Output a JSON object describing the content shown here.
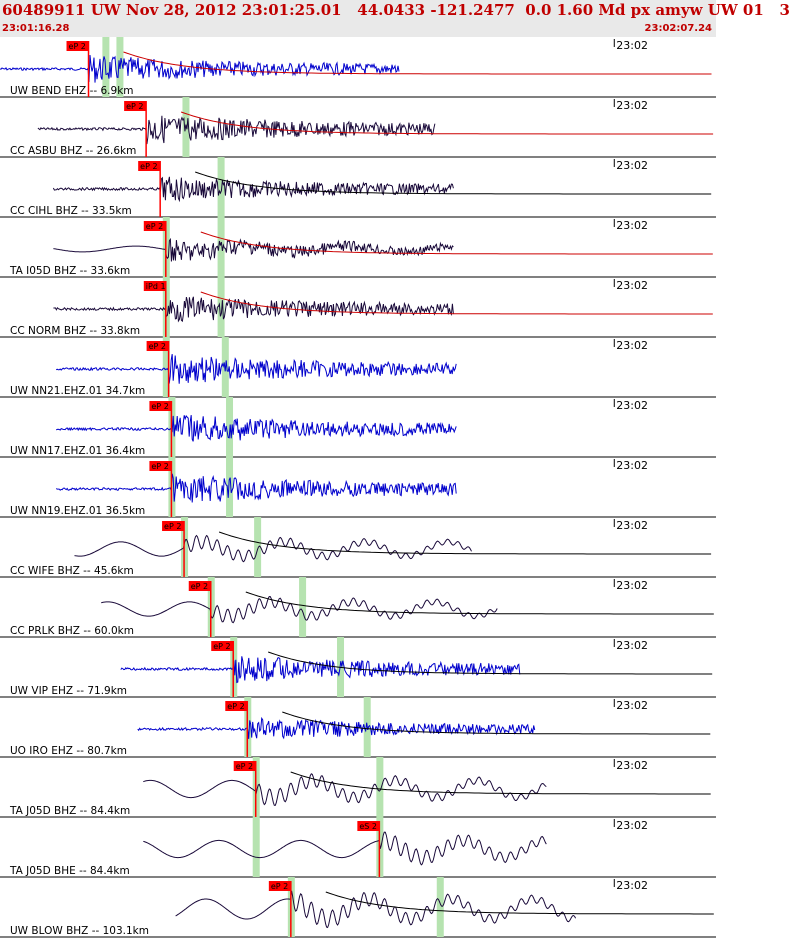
{
  "header": {
    "title": "60489911 UW Nov 28, 2012 23:01:25.01   44.0433 -121.2477  0.0 1.60 Md px amyw UW 01   3",
    "time_start": "23:01:16.28",
    "time_end": "23:02:07.24"
  },
  "colors": {
    "header_bg": "#e9e9e9",
    "header_text": "#c00000",
    "trace_blue": "#0000cc",
    "trace_dark": "#1a0a3a",
    "pick_flag": "#ff0000",
    "window_green": "#b6e3b0",
    "coda_red": "#cc0000"
  },
  "chart_data": {
    "type": "line",
    "xlabel": "",
    "ylabel": "",
    "minute_tick_label": "23:02",
    "traces": [
      {
        "label": "UW BEND EHZ -- 6.9km",
        "pick_label": "eP 2",
        "pick_s": 6.3,
        "window1_s": 7.5,
        "window2_s": 8.5,
        "start_s": 0,
        "end_s": 28.4,
        "color": "blue",
        "kind": "hf",
        "amp": 0.55,
        "coda": "red"
      },
      {
        "label": "CC ASBU BHZ -- 26.6km",
        "pick_label": "eP 2",
        "pick_s": 10.4,
        "window1_s": 0,
        "window2_s": 13.2,
        "start_s": 2.7,
        "end_s": 31.0,
        "color": "dark",
        "kind": "hf",
        "amp": 0.6,
        "coda": "red"
      },
      {
        "label": "CC CIHL BHZ -- 33.5km",
        "pick_label": "eP 2",
        "pick_s": 11.4,
        "window1_s": 0,
        "window2_s": 15.7,
        "start_s": 3.8,
        "end_s": 32.3,
        "color": "dark",
        "kind": "hf",
        "amp": 0.5,
        "coda": "black"
      },
      {
        "label": "TA I05D BHZ -- 33.6km",
        "pick_label": "eP 2",
        "pick_s": 11.8,
        "window1_s": 11.8,
        "window2_s": 15.7,
        "start_s": 3.8,
        "end_s": 32.3,
        "color": "dark",
        "kind": "mix",
        "amp": 0.45,
        "coda": "red"
      },
      {
        "label": "CC NORM BHZ -- 33.8km",
        "pick_label": "iPd 1",
        "pick_s": 11.8,
        "window1_s": 11.8,
        "window2_s": 15.7,
        "start_s": 3.8,
        "end_s": 32.3,
        "color": "dark",
        "kind": "hf",
        "amp": 0.55,
        "coda": "red"
      },
      {
        "label": "UW NN21.EHZ.01 34.7km",
        "pick_label": "eP 2",
        "pick_s": 12.0,
        "window1_s": 11.8,
        "window2_s": 16.0,
        "start_s": 4.0,
        "end_s": 32.5,
        "color": "blue",
        "kind": "hf",
        "amp": 0.6,
        "coda": "none"
      },
      {
        "label": "UW NN17.EHZ.01 36.4km",
        "pick_label": "eP 2",
        "pick_s": 12.2,
        "window1_s": 12.2,
        "window2_s": 16.3,
        "start_s": 4.0,
        "end_s": 32.5,
        "color": "blue",
        "kind": "hf",
        "amp": 0.6,
        "coda": "none"
      },
      {
        "label": "UW NN19.EHZ.01 36.5km",
        "pick_label": "eP 2",
        "pick_s": 12.2,
        "window1_s": 12.2,
        "window2_s": 16.3,
        "start_s": 4.0,
        "end_s": 32.5,
        "color": "blue",
        "kind": "hf",
        "amp": 0.6,
        "coda": "none"
      },
      {
        "label": "CC WIFE BHZ -- 45.6km",
        "pick_label": "eP 2",
        "pick_s": 13.1,
        "window1_s": 13.1,
        "window2_s": 18.3,
        "start_s": 5.3,
        "end_s": 33.6,
        "color": "dark",
        "kind": "lf",
        "amp": 0.5,
        "coda": "black"
      },
      {
        "label": "CC PRLK BHZ -- 60.0km",
        "pick_label": "eP 2",
        "pick_s": 15.0,
        "window1_s": 15.0,
        "window2_s": 21.5,
        "start_s": 7.2,
        "end_s": 35.4,
        "color": "dark",
        "kind": "lf",
        "amp": 0.5,
        "coda": "black"
      },
      {
        "label": "UW VIP EHZ -- 71.9km",
        "pick_label": "eP 2",
        "pick_s": 16.6,
        "window1_s": 16.6,
        "window2_s": 24.2,
        "start_s": 8.6,
        "end_s": 37.0,
        "color": "blue",
        "kind": "hf",
        "amp": 0.55,
        "coda": "black"
      },
      {
        "label": "UO IRO EHZ -- 80.7km",
        "pick_label": "eP 2",
        "pick_s": 17.6,
        "window1_s": 17.6,
        "window2_s": 26.1,
        "start_s": 9.8,
        "end_s": 38.1,
        "color": "blue",
        "kind": "hf",
        "amp": 0.45,
        "coda": "black"
      },
      {
        "label": "TA J05D BHZ -- 84.4km",
        "pick_label": "eP 2",
        "pick_s": 18.2,
        "window1_s": 18.2,
        "window2_s": 27.0,
        "start_s": 10.2,
        "end_s": 38.9,
        "color": "dark",
        "kind": "lf",
        "amp": 0.6,
        "coda": "black"
      },
      {
        "label": "TA J05D BHE -- 84.4km",
        "pick_label": "eS 2",
        "pick_s": 27.0,
        "window1_s": 18.2,
        "window2_s": 27.0,
        "start_s": 10.2,
        "end_s": 38.9,
        "color": "dark",
        "kind": "lf",
        "amp": 0.6,
        "coda": "none"
      },
      {
        "label": "UW BLOW BHZ -- 103.1km",
        "pick_label": "eP 2",
        "pick_s": 20.7,
        "window1_s": 20.7,
        "window2_s": 31.3,
        "start_s": 12.5,
        "end_s": 41.0,
        "color": "dark",
        "kind": "lf",
        "amp": 0.7,
        "coda": "black"
      }
    ]
  }
}
